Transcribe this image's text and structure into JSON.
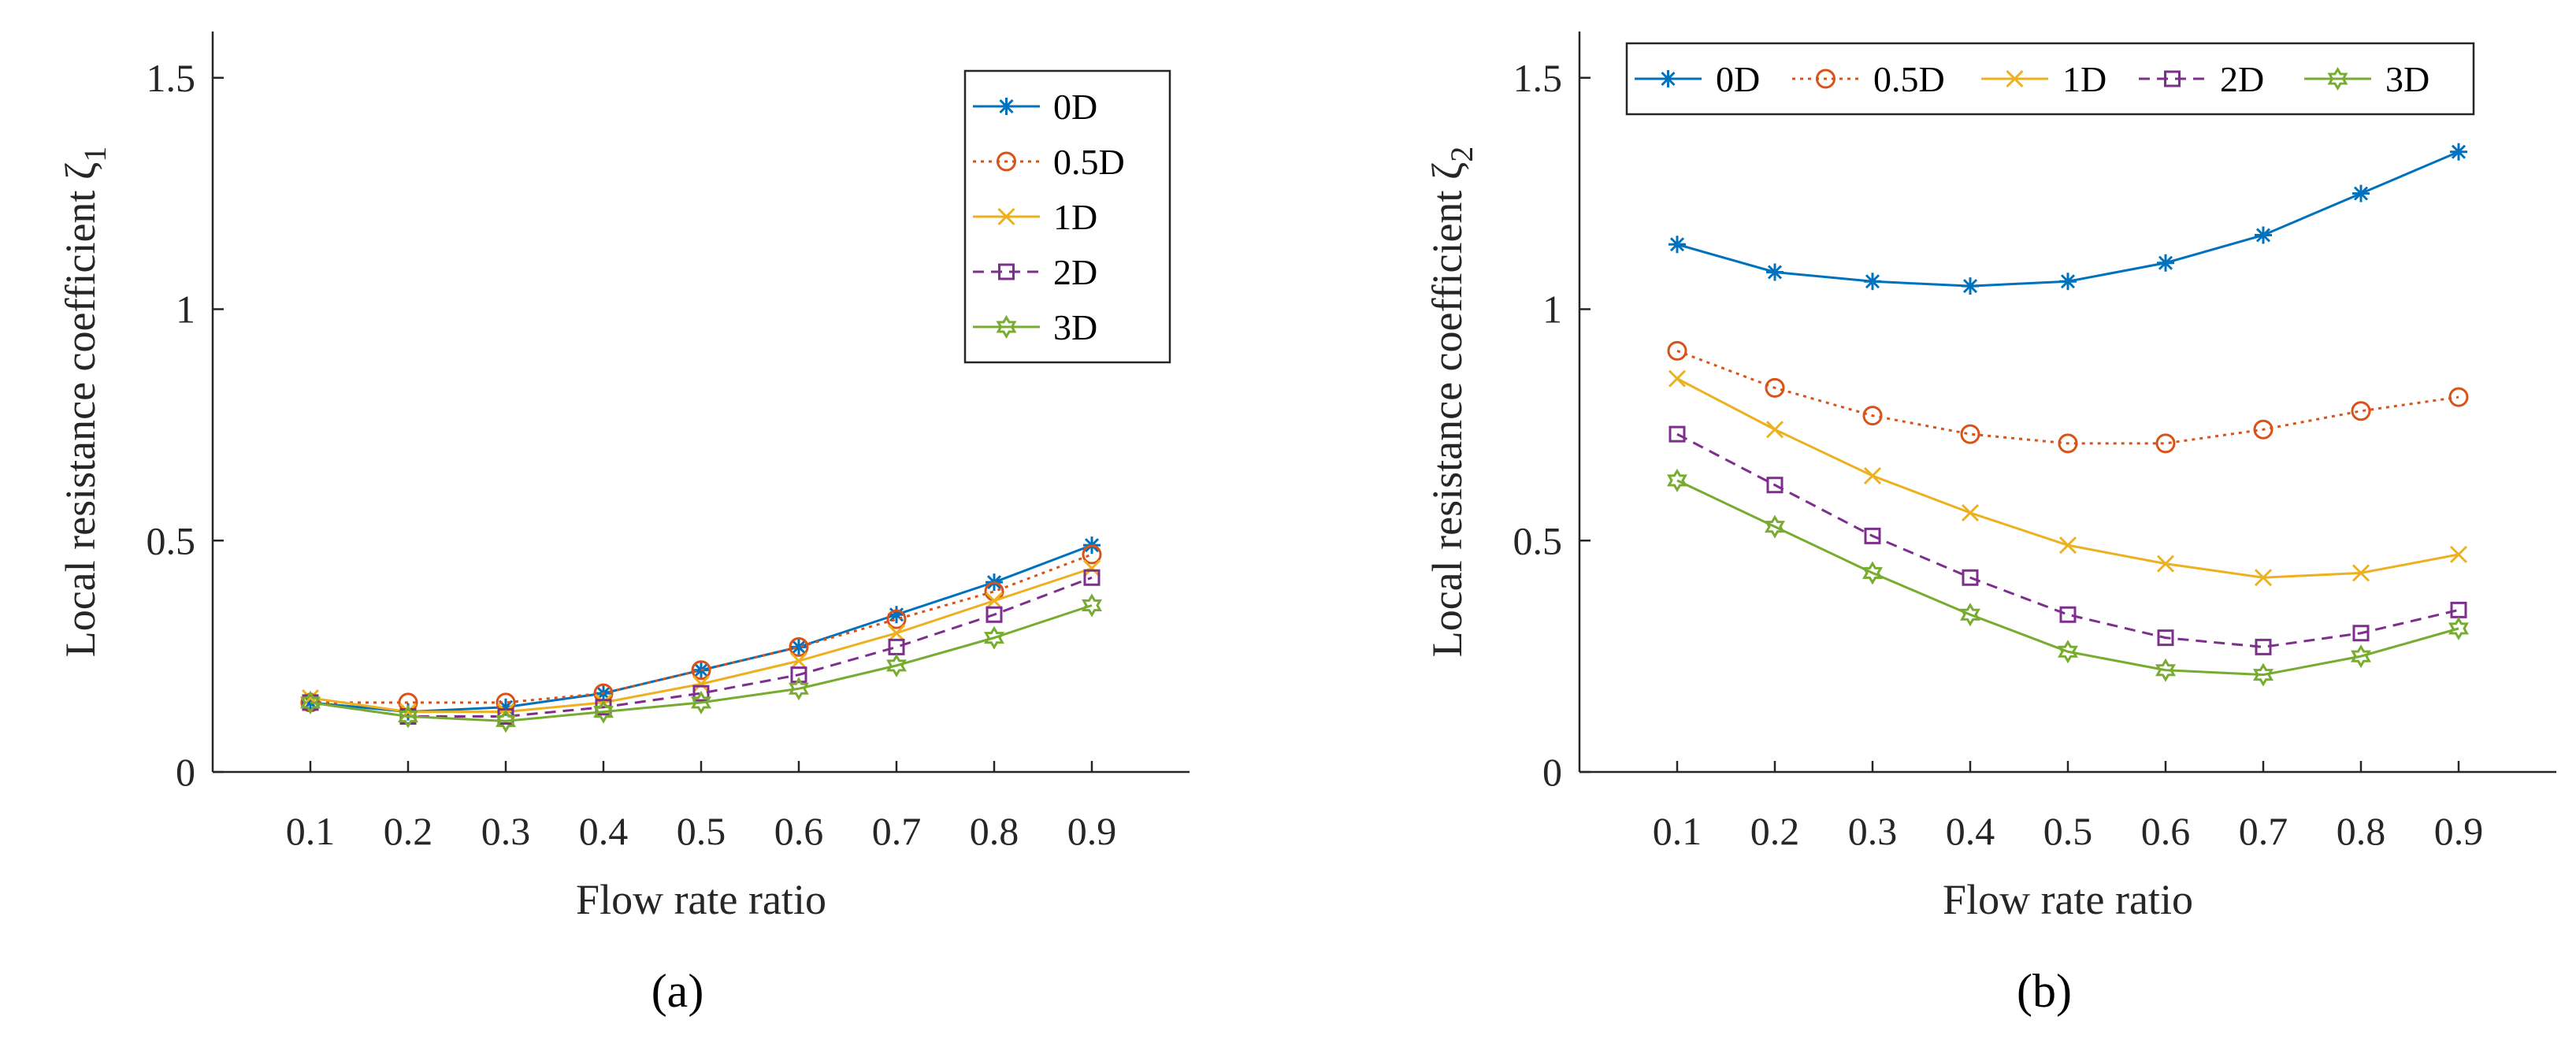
{
  "chart_data": [
    {
      "type": "line",
      "panel_label": "(a)",
      "xlabel": "Flow rate ratio",
      "ylabel": "Local resistance coefficient ζ",
      "ylabel_sub": "1",
      "x": [
        0.1,
        0.2,
        0.3,
        0.4,
        0.5,
        0.6,
        0.7,
        0.8,
        0.9
      ],
      "x_tick_labels": [
        "0.1",
        "0.2",
        "0.3",
        "0.4",
        "0.5",
        "0.6",
        "0.7",
        "0.8",
        "0.9"
      ],
      "y_ticks": [
        0,
        0.5,
        1,
        1.5
      ],
      "y_tick_labels": [
        "0",
        "0.5",
        "1",
        "1.5"
      ],
      "xlim": [
        0,
        1
      ],
      "ylim": [
        0,
        1.6
      ],
      "legend_position": "top-right",
      "legend_orientation": "vertical",
      "series": [
        {
          "name": "0D",
          "color": "#0072BD",
          "marker": "star",
          "dash": "solid",
          "values": [
            0.15,
            0.13,
            0.14,
            0.17,
            0.22,
            0.27,
            0.34,
            0.41,
            0.49
          ]
        },
        {
          "name": "0.5D",
          "color": "#D95319",
          "marker": "circle",
          "dash": "dotted",
          "values": [
            0.15,
            0.15,
            0.15,
            0.17,
            0.22,
            0.27,
            0.33,
            0.39,
            0.47
          ]
        },
        {
          "name": "1D",
          "color": "#EDB120",
          "marker": "x",
          "dash": "solid",
          "values": [
            0.16,
            0.13,
            0.13,
            0.15,
            0.19,
            0.24,
            0.3,
            0.37,
            0.44
          ]
        },
        {
          "name": "2D",
          "color": "#7E2F8E",
          "marker": "square",
          "dash": "dashed",
          "values": [
            0.15,
            0.12,
            0.12,
            0.14,
            0.17,
            0.21,
            0.27,
            0.34,
            0.42
          ]
        },
        {
          "name": "3D",
          "color": "#77AC30",
          "marker": "hexagram",
          "dash": "solid",
          "values": [
            0.15,
            0.12,
            0.11,
            0.13,
            0.15,
            0.18,
            0.23,
            0.29,
            0.36
          ]
        }
      ]
    },
    {
      "type": "line",
      "panel_label": "(b)",
      "xlabel": "Flow rate ratio",
      "ylabel": "Local resistance coefficient ζ",
      "ylabel_sub": "2",
      "x": [
        0.1,
        0.2,
        0.3,
        0.4,
        0.5,
        0.6,
        0.7,
        0.8,
        0.9
      ],
      "x_tick_labels": [
        "0.1",
        "0.2",
        "0.3",
        "0.4",
        "0.5",
        "0.6",
        "0.7",
        "0.8",
        "0.9"
      ],
      "y_ticks": [
        0,
        0.5,
        1,
        1.5
      ],
      "y_tick_labels": [
        "0",
        "0.5",
        "1",
        "1.5"
      ],
      "xlim": [
        0,
        1
      ],
      "ylim": [
        0,
        1.6
      ],
      "legend_position": "top",
      "legend_orientation": "horizontal",
      "series": [
        {
          "name": "0D",
          "color": "#0072BD",
          "marker": "star",
          "dash": "solid",
          "values": [
            1.14,
            1.08,
            1.06,
            1.05,
            1.06,
            1.1,
            1.16,
            1.25,
            1.34
          ]
        },
        {
          "name": "0.5D",
          "color": "#D95319",
          "marker": "circle",
          "dash": "dotted",
          "values": [
            0.91,
            0.83,
            0.77,
            0.73,
            0.71,
            0.71,
            0.74,
            0.78,
            0.81
          ]
        },
        {
          "name": "1D",
          "color": "#EDB120",
          "marker": "x",
          "dash": "solid",
          "values": [
            0.85,
            0.74,
            0.64,
            0.56,
            0.49,
            0.45,
            0.42,
            0.43,
            0.47
          ]
        },
        {
          "name": "2D",
          "color": "#7E2F8E",
          "marker": "square",
          "dash": "dashed",
          "values": [
            0.73,
            0.62,
            0.51,
            0.42,
            0.34,
            0.29,
            0.27,
            0.3,
            0.35
          ]
        },
        {
          "name": "3D",
          "color": "#77AC30",
          "marker": "hexagram",
          "dash": "solid",
          "values": [
            0.63,
            0.53,
            0.43,
            0.34,
            0.26,
            0.22,
            0.21,
            0.25,
            0.31
          ]
        }
      ]
    }
  ]
}
